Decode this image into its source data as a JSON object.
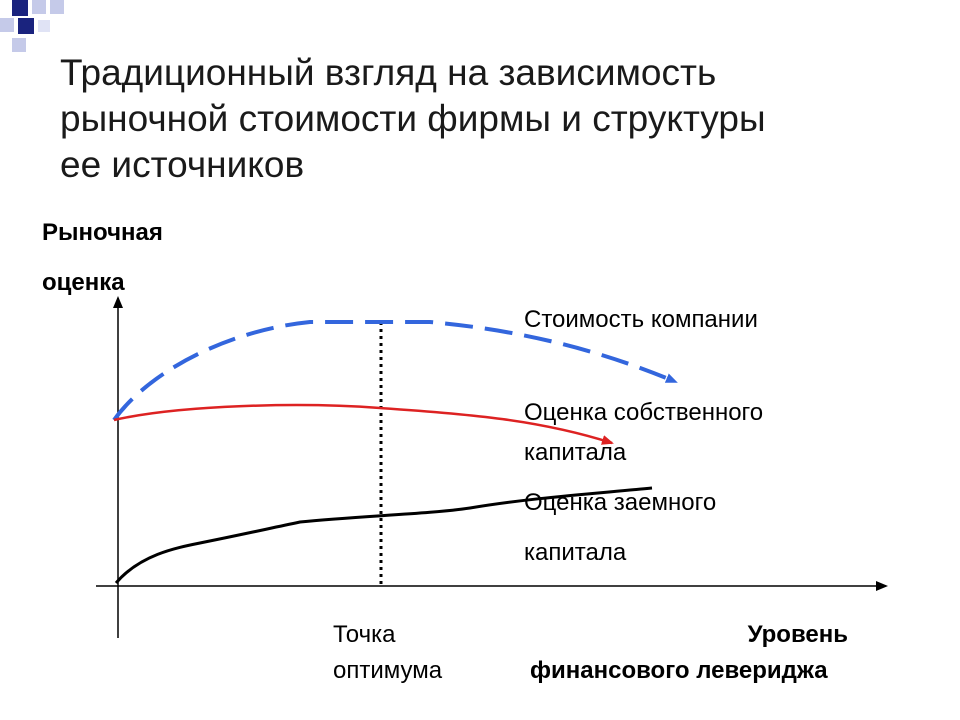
{
  "title_lines": [
    "Традиционный взгляд на зависимость",
    "рыночной стоимости фирмы и структуры",
    "ее источников"
  ],
  "y_axis_label": [
    "Рыночная",
    "оценка"
  ],
  "x_axis_label": [
    "Уровень",
    "финансового левериджа"
  ],
  "optimum_label": [
    "Точка",
    "оптимума"
  ],
  "curves": {
    "firm_value": {
      "label": [
        "Стоимость компании"
      ],
      "color": "#3366dd"
    },
    "equity_value": {
      "label": [
        "Оценка собственного",
        "капитала"
      ],
      "color": "#dd2222"
    },
    "debt_value": {
      "label": [
        "Оценка заемного",
        "капитала"
      ],
      "color": "#000000"
    }
  },
  "colors": {
    "deco_dark": "#1a237e",
    "deco_light": "#b7bde8"
  }
}
